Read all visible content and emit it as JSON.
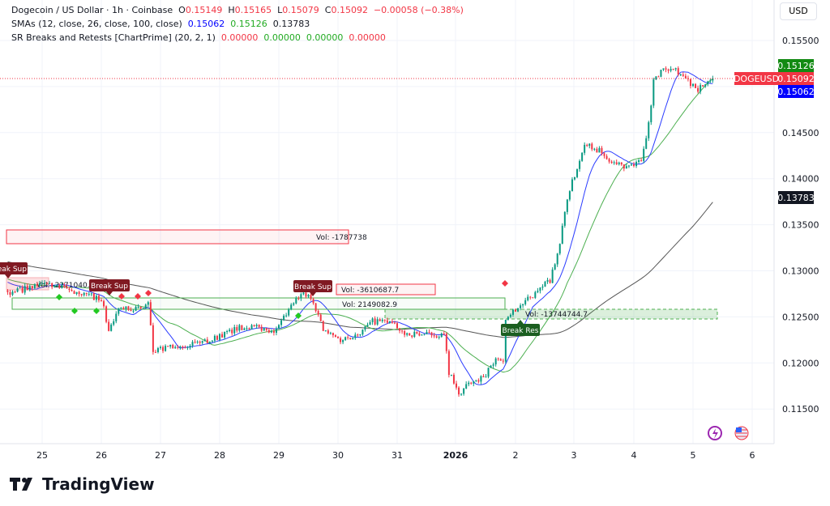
{
  "legend": {
    "symbol": "Dogecoin / US Dollar · 1h · Coinbase",
    "o_label": "O",
    "o": "0.15149",
    "h_label": "H",
    "h": "0.15165",
    "l_label": "L",
    "l": "0.15079",
    "c_label": "C",
    "c": "0.15092",
    "change": "−0.00058 (−0.38%)",
    "sma_title": "SMAs (12, close, 26, close, 100, close)",
    "sma12": "0.15062",
    "sma26": "0.15126",
    "sma100": "0.13783",
    "sr_title": "SR Breaks and Retests [ChartPrime] (20, 2, 1)",
    "sr_values": [
      "0.00000",
      "0.00000",
      "0.00000",
      "0.00000"
    ]
  },
  "currency_button": "USD",
  "symbol_badge": "DOGEUSD",
  "badges": {
    "sma26": "0.15126",
    "last": "0.15092",
    "sma12": "0.15062",
    "sma100": "0.13783"
  },
  "colors": {
    "up": "#089981",
    "down": "#f23645",
    "sma12": "#2b3cff",
    "sma26": "#4caf50",
    "sma100": "#555555",
    "badge_last": "#f23645",
    "badge_sma26": "#138a13",
    "badge_sma12": "#0000ff",
    "badge_sma100": "#131722"
  },
  "annotations": {
    "vol_labels": [
      "Vol: -1787738",
      "Vol: -2271040.7",
      "Vol: -3610687.7",
      "Vol: 2149082.9",
      "Vol: -13744744.7"
    ],
    "break_labels": [
      "Break Sup",
      "Break Sup",
      "Break Sup",
      "Break Res"
    ]
  },
  "brand": "TradingView",
  "chart_data": {
    "type": "candlestick",
    "title": "Dogecoin / US Dollar · 1h · Coinbase",
    "y_ticks": [
      "0.15500",
      "0.14500",
      "0.14000",
      "0.13500",
      "0.13000",
      "0.12500",
      "0.12000",
      "0.11500"
    ],
    "ylim": [
      0.113,
      0.157
    ],
    "x_ticks": [
      "25",
      "26",
      "27",
      "28",
      "29",
      "30",
      "31",
      "2026",
      "2",
      "3",
      "4",
      "5",
      "6"
    ],
    "grid": true,
    "close_path": [
      [
        "2025-12-24 10:00",
        0.1275
      ],
      [
        "2025-12-24 20:00",
        0.1283
      ],
      [
        "2025-12-25 03:00",
        0.1285
      ],
      [
        "2025-12-25 16:00",
        0.1275
      ],
      [
        "2025-12-26 00:00",
        0.127
      ],
      [
        "2025-12-26 03:00",
        0.1235
      ],
      [
        "2025-12-26 08:00",
        0.1262
      ],
      [
        "2025-12-26 16:00",
        0.1258
      ],
      [
        "2025-12-26 19:00",
        0.1265
      ],
      [
        "2025-12-26 21:00",
        0.1212
      ],
      [
        "2025-12-27 04:00",
        0.1217
      ],
      [
        "2025-12-27 20:00",
        0.1225
      ],
      [
        "2025-12-28 10:00",
        0.124
      ],
      [
        "2025-12-28 23:00",
        0.1235
      ],
      [
        "2025-12-29 06:00",
        0.1265
      ],
      [
        "2025-12-29 10:00",
        0.1275
      ],
      [
        "2025-12-29 14:00",
        0.1268
      ],
      [
        "2025-12-29 18:00",
        0.1235
      ],
      [
        "2025-12-30 01:00",
        0.1225
      ],
      [
        "2025-12-30 09:00",
        0.1233
      ],
      [
        "2025-12-30 14:00",
        0.1245
      ],
      [
        "2025-12-30 21:00",
        0.1245
      ],
      [
        "2025-12-31 02:00",
        0.1232
      ],
      [
        "2025-12-31 19:00",
        0.123
      ],
      [
        "2025-12-31 21:00",
        0.119
      ],
      [
        "2026-01-01 01:00",
        0.1165
      ],
      [
        "2026-01-01 06:00",
        0.118
      ],
      [
        "2026-01-01 12:00",
        0.1185
      ],
      [
        "2026-01-01 14:00",
        0.12
      ],
      [
        "2026-01-01 19:00",
        0.1205
      ],
      [
        "2026-01-01 20:00",
        0.125
      ],
      [
        "2026-01-02 01:00",
        0.126
      ],
      [
        "2026-01-02 08:00",
        0.1275
      ],
      [
        "2026-01-02 14:00",
        0.129
      ],
      [
        "2026-01-02 18:00",
        0.133
      ],
      [
        "2026-01-02 21:00",
        0.138
      ],
      [
        "2026-01-03 02:00",
        0.142
      ],
      [
        "2026-01-03 04:00",
        0.144
      ],
      [
        "2026-01-03 10:00",
        0.143
      ],
      [
        "2026-01-03 13:00",
        0.142
      ],
      [
        "2026-01-03 20:00",
        0.1412
      ],
      [
        "2026-01-04 03:00",
        0.142
      ],
      [
        "2026-01-04 06:00",
        0.146
      ],
      [
        "2026-01-04 08:00",
        0.1505
      ],
      [
        "2026-01-04 11:00",
        0.1518
      ],
      [
        "2026-01-04 16:00",
        0.1522
      ],
      [
        "2026-01-04 22:00",
        0.1505
      ],
      [
        "2026-01-05 02:00",
        0.1495
      ],
      [
        "2026-01-05 05:00",
        0.1505
      ],
      [
        "2026-01-05 08:00",
        0.1509
      ]
    ],
    "series": [
      {
        "name": "SMA 12",
        "last": 0.15062
      },
      {
        "name": "SMA 26",
        "last": 0.15126
      },
      {
        "name": "SMA 100",
        "last": 0.13783
      }
    ]
  }
}
